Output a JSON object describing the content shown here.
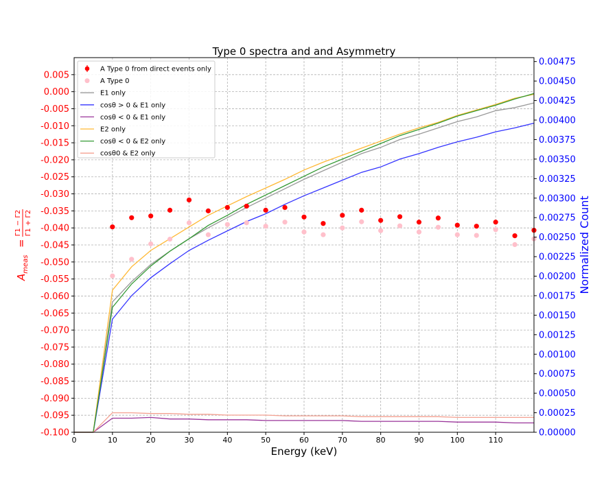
{
  "chart_data": {
    "type": "line",
    "title": "Type 0 spectra and  and Asymmetry",
    "xlabel": "Energy (keV)",
    "ylabel_left": "A_meas = (Γ1−Γ2)/(Γ1+Γ2)",
    "ylabel_left_prefix": "A",
    "ylabel_left_sub": "meas",
    "ylabel_left_num": "Γ1 − Γ2",
    "ylabel_left_den": "Γ1 + Γ2",
    "ylabel_right": "Normalized Count",
    "xlim": [
      0,
      120
    ],
    "ylim_left": [
      -0.1,
      0.01
    ],
    "ylim_right": [
      0.0,
      0.0048
    ],
    "grid": true,
    "legend_position": "top-left",
    "x_ticks": [
      "0",
      "10",
      "20",
      "30",
      "40",
      "50",
      "60",
      "70",
      "80",
      "90",
      "100",
      "110"
    ],
    "y_left_ticks": [
      "0.005",
      "0.000",
      "-0.005",
      "-0.010",
      "-0.015",
      "-0.020",
      "-0.025",
      "-0.030",
      "-0.035",
      "-0.040",
      "-0.045",
      "-0.050",
      "-0.055",
      "-0.060",
      "-0.065",
      "-0.070",
      "-0.075",
      "-0.080",
      "-0.085",
      "-0.090",
      "-0.095",
      "-0.100"
    ],
    "y_right_ticks": [
      "0.00000",
      "0.00025",
      "0.00050",
      "0.00075",
      "0.00100",
      "0.00125",
      "0.00150",
      "0.00175",
      "0.00200",
      "0.00225",
      "0.00250",
      "0.00275",
      "0.00300",
      "0.00325",
      "0.00350",
      "0.00375",
      "0.00400",
      "0.00425",
      "0.00450",
      "0.00475"
    ],
    "legend": [
      {
        "label": "A Type 0 from direct events only",
        "kind": "errorbar",
        "color": "#ff0000"
      },
      {
        "label": "A Type 0",
        "kind": "marker",
        "color": "#ffc0cb"
      },
      {
        "label": "E1 only",
        "kind": "line",
        "color": "#999999"
      },
      {
        "label": "cosθ > 0 & E1 only",
        "kind": "line",
        "color": "#3333ff"
      },
      {
        "label": "cosθ < 0 & E1 only",
        "kind": "line",
        "color": "#993399"
      },
      {
        "label": "E2 only",
        "kind": "line",
        "color": "#ffb833"
      },
      {
        "label": "cosθ < 0 & E2 only",
        "kind": "line",
        "color": "#339933"
      },
      {
        "label": "cosθ0 & E2 only",
        "kind": "line",
        "color": "#f4a090"
      }
    ],
    "scatter_series": [
      {
        "name": "A Type 0 from direct events only",
        "axis": "left",
        "color": "#ff0000",
        "x": [
          10,
          15,
          20,
          25,
          30,
          35,
          40,
          45,
          50,
          55,
          60,
          65,
          70,
          75,
          80,
          85,
          90,
          95,
          100,
          105,
          110,
          115,
          120
        ],
        "y": [
          -0.0397,
          -0.037,
          -0.0365,
          -0.0348,
          -0.0318,
          -0.035,
          -0.034,
          -0.0336,
          -0.0348,
          -0.034,
          -0.0368,
          -0.0387,
          -0.0363,
          -0.0348,
          -0.0378,
          -0.0367,
          -0.0383,
          -0.0371,
          -0.0392,
          -0.0395,
          -0.0383,
          -0.0423,
          -0.0407
        ]
      },
      {
        "name": "A Type 0",
        "axis": "left",
        "color": "#ffc0cb",
        "x": [
          10,
          15,
          20,
          25,
          30,
          35,
          40,
          45,
          50,
          55,
          60,
          65,
          70,
          75,
          80,
          85,
          90,
          95,
          100,
          105,
          110,
          115,
          120
        ],
        "y": [
          -0.0541,
          -0.0492,
          -0.0447,
          -0.0433,
          -0.0385,
          -0.042,
          -0.039,
          -0.0385,
          -0.0395,
          -0.0383,
          -0.0412,
          -0.042,
          -0.04,
          -0.0382,
          -0.0408,
          -0.0394,
          -0.0412,
          -0.0398,
          -0.042,
          -0.0422,
          -0.0405,
          -0.0449,
          -0.0432
        ]
      }
    ],
    "line_series": [
      {
        "name": "E1 only",
        "axis": "right",
        "color": "#999999",
        "x": [
          0,
          5,
          10,
          15,
          20,
          25,
          30,
          35,
          40,
          45,
          50,
          55,
          60,
          65,
          70,
          75,
          80,
          85,
          90,
          95,
          100,
          105,
          110,
          115,
          120
        ],
        "y": [
          0,
          0,
          0.00167,
          0.00193,
          0.00215,
          0.00232,
          0.00248,
          0.00262,
          0.00275,
          0.00288,
          0.003,
          0.00312,
          0.00324,
          0.00335,
          0.00346,
          0.00357,
          0.00365,
          0.00375,
          0.00382,
          0.0039,
          0.00398,
          0.00404,
          0.00412,
          0.00416,
          0.00422
        ]
      },
      {
        "name": "cosθ > 0 & E1 only",
        "axis": "right",
        "color": "#3333ff",
        "x": [
          0,
          5,
          10,
          15,
          20,
          25,
          30,
          35,
          40,
          45,
          50,
          55,
          60,
          65,
          70,
          75,
          80,
          85,
          90,
          95,
          100,
          105,
          110,
          115,
          120
        ],
        "y": [
          0,
          0,
          0.00145,
          0.00175,
          0.00198,
          0.00216,
          0.00233,
          0.00246,
          0.00258,
          0.0027,
          0.0028,
          0.00292,
          0.00303,
          0.00313,
          0.00323,
          0.00333,
          0.0034,
          0.0035,
          0.00357,
          0.00365,
          0.00372,
          0.00378,
          0.00385,
          0.0039,
          0.00396
        ]
      },
      {
        "name": "cosθ < 0 & E1 only",
        "axis": "right",
        "color": "#993399",
        "x": [
          0,
          5,
          10,
          15,
          20,
          25,
          30,
          35,
          40,
          45,
          50,
          55,
          60,
          65,
          70,
          75,
          80,
          85,
          90,
          95,
          100,
          105,
          110,
          115,
          120
        ],
        "y": [
          0,
          0,
          0.00018,
          0.00018,
          0.00019,
          0.00017,
          0.00017,
          0.00016,
          0.00016,
          0.00016,
          0.00015,
          0.00015,
          0.00015,
          0.00015,
          0.00015,
          0.00014,
          0.00014,
          0.00014,
          0.00014,
          0.00014,
          0.00013,
          0.00013,
          0.00013,
          0.00012,
          0.00012
        ]
      },
      {
        "name": "E2 only",
        "axis": "right",
        "color": "#ffb833",
        "x": [
          0,
          5,
          10,
          15,
          20,
          25,
          30,
          35,
          40,
          45,
          50,
          55,
          60,
          65,
          70,
          75,
          80,
          85,
          90,
          95,
          100,
          105,
          110,
          115,
          120
        ],
        "y": [
          0,
          0,
          0.00182,
          0.00212,
          0.00233,
          0.00248,
          0.00263,
          0.00278,
          0.0029,
          0.00302,
          0.00313,
          0.00324,
          0.00336,
          0.00346,
          0.00355,
          0.00364,
          0.00373,
          0.00382,
          0.0039,
          0.00397,
          0.00406,
          0.00413,
          0.0042,
          0.00428,
          0.00433
        ]
      },
      {
        "name": "cosθ < 0 & E2 only",
        "axis": "right",
        "color": "#339933",
        "x": [
          0,
          5,
          10,
          15,
          20,
          25,
          30,
          35,
          40,
          45,
          50,
          55,
          60,
          65,
          70,
          75,
          80,
          85,
          90,
          95,
          100,
          105,
          110,
          115,
          120
        ],
        "y": [
          0,
          0,
          0.0016,
          0.0019,
          0.00213,
          0.00232,
          0.00248,
          0.00265,
          0.00278,
          0.00292,
          0.00304,
          0.00316,
          0.00328,
          0.0034,
          0.0035,
          0.0036,
          0.0037,
          0.0038,
          0.00388,
          0.00396,
          0.00405,
          0.00412,
          0.00419,
          0.00427,
          0.00434
        ]
      },
      {
        "name": "cosθ0 & E2 only",
        "axis": "right",
        "color": "#f4a090",
        "x": [
          0,
          5,
          10,
          15,
          20,
          25,
          30,
          35,
          40,
          45,
          50,
          55,
          60,
          65,
          70,
          75,
          80,
          85,
          90,
          95,
          100,
          105,
          110,
          115,
          120
        ],
        "y": [
          0,
          0,
          0.00025,
          0.00025,
          0.00024,
          0.00024,
          0.00023,
          0.00023,
          0.00022,
          0.00022,
          0.00022,
          0.00021,
          0.00021,
          0.00021,
          0.00021,
          0.0002,
          0.0002,
          0.0002,
          0.0002,
          0.0002,
          0.00019,
          0.00019,
          0.00019,
          0.00019,
          0.00019
        ]
      }
    ]
  }
}
